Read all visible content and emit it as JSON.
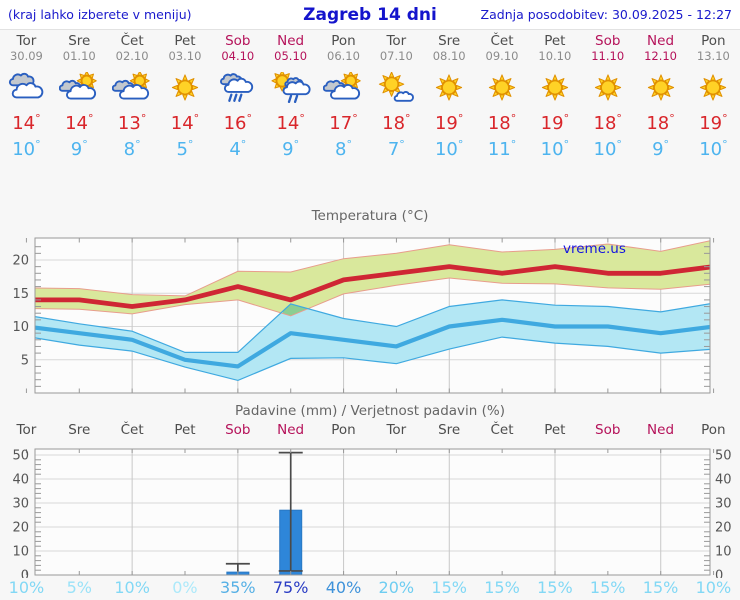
{
  "header": {
    "hint": "(kraj lahko izberete v meniju)",
    "title": "Zagreb 14 dni",
    "updated": "Zadnja posodobitev: 30.09.2025 - 12:27"
  },
  "misc": {
    "degree": "°",
    "percent": "%"
  },
  "colors": {
    "header_blue": "#1414cc",
    "weekday": "#4d4d4d",
    "weekend": "#b5125a",
    "date_gray": "#8b8b8b",
    "high_temp": "#d9262b",
    "low_temp": "#4db4ef",
    "tmax_line": "#cf2634",
    "tmax_band": "#d9e89c",
    "tmax_band_edge": "#e89d8c",
    "tmin_line": "#3fa9e0",
    "tmin_band": "#b3e7f4",
    "band_overlap": "#8bce92",
    "bar_fill": "#2e86d9",
    "bar_edge": "#2a79c4",
    "whisker": "#4a4a4a",
    "watermark_blue": "#1414e0",
    "grid": "#d8d8d8",
    "vgrid": "#c8c8c8",
    "axis": "#999999",
    "tick_label": "#555555",
    "sun_fill": "#ffd226",
    "sun_stroke": "#e09000",
    "cloud_stroke": "#2a5fc0",
    "cloud_gray": "#c3c8ce",
    "cloud_white": "#ffffff"
  },
  "days": [
    {
      "name": "Tor",
      "date": "30.09",
      "weekend": false,
      "icon": "cloudy",
      "high": "14",
      "low": "10"
    },
    {
      "name": "Sre",
      "date": "01.10",
      "weekend": false,
      "icon": "partly-cloudy",
      "high": "14",
      "low": "9"
    },
    {
      "name": "Čet",
      "date": "02.10",
      "weekend": false,
      "icon": "partly-cloudy",
      "high": "13",
      "low": "8"
    },
    {
      "name": "Pet",
      "date": "03.10",
      "weekend": false,
      "icon": "sunny",
      "high": "14",
      "low": "5"
    },
    {
      "name": "Sob",
      "date": "04.10",
      "weekend": true,
      "icon": "rain",
      "high": "16",
      "low": "4"
    },
    {
      "name": "Ned",
      "date": "05.10",
      "weekend": true,
      "icon": "sun-shower",
      "high": "14",
      "low": "9"
    },
    {
      "name": "Pon",
      "date": "06.10",
      "weekend": false,
      "icon": "partly-cloudy",
      "high": "17",
      "low": "8"
    },
    {
      "name": "Tor",
      "date": "07.10",
      "weekend": false,
      "icon": "mostly-sunny",
      "high": "18",
      "low": "7"
    },
    {
      "name": "Sre",
      "date": "08.10",
      "weekend": false,
      "icon": "sunny",
      "high": "19",
      "low": "10"
    },
    {
      "name": "Čet",
      "date": "09.10",
      "weekend": false,
      "icon": "sunny",
      "high": "18",
      "low": "11"
    },
    {
      "name": "Pet",
      "date": "10.10",
      "weekend": false,
      "icon": "sunny",
      "high": "19",
      "low": "10"
    },
    {
      "name": "Sob",
      "date": "11.10",
      "weekend": true,
      "icon": "sunny",
      "high": "18",
      "low": "10"
    },
    {
      "name": "Ned",
      "date": "12.10",
      "weekend": true,
      "icon": "sunny",
      "high": "18",
      "low": "9"
    },
    {
      "name": "Pon",
      "date": "13.10",
      "weekend": false,
      "icon": "sunny",
      "high": "19",
      "low": "10"
    }
  ],
  "chart_data": [
    {
      "type": "line",
      "title": "Temperatura (°C)",
      "watermark": "vreme.us",
      "categories": [
        "Tor",
        "Sre",
        "Čet",
        "Pet",
        "Sob",
        "Ned",
        "Pon",
        "Tor",
        "Sre",
        "Čet",
        "Pet",
        "Sob",
        "Ned",
        "Pon"
      ],
      "ylim": [
        0,
        23.3
      ],
      "yticks": [
        5,
        10,
        15,
        20
      ],
      "grid": true,
      "series": [
        {
          "name": "t_max",
          "values": [
            14,
            14,
            13,
            14,
            16,
            14,
            17,
            18,
            19,
            18,
            19,
            18,
            18,
            19
          ]
        },
        {
          "name": "t_max_range_upper",
          "values": [
            15.8,
            15.7,
            14.8,
            14.6,
            18.3,
            18.2,
            20.2,
            21.0,
            22.3,
            21.2,
            21.6,
            22.4,
            21.3,
            23.0
          ]
        },
        {
          "name": "t_max_range_lower",
          "values": [
            12.7,
            12.6,
            11.9,
            13.3,
            14.0,
            11.6,
            14.9,
            16.2,
            17.3,
            16.5,
            16.4,
            15.8,
            15.6,
            16.4
          ]
        },
        {
          "name": "t_min",
          "values": [
            10,
            9,
            8,
            5,
            4,
            9,
            8,
            7,
            10,
            11,
            10,
            10,
            9,
            10
          ]
        },
        {
          "name": "t_min_range_upper",
          "values": [
            11.7,
            10.4,
            9.3,
            6.1,
            6.1,
            13.4,
            11.2,
            10.0,
            13.0,
            14.0,
            13.2,
            13.0,
            12.2,
            13.5
          ]
        },
        {
          "name": "t_min_range_lower",
          "values": [
            8.5,
            7.2,
            6.3,
            3.9,
            1.9,
            5.2,
            5.3,
            4.4,
            6.6,
            8.4,
            7.5,
            7.0,
            6.0,
            6.6
          ]
        }
      ]
    },
    {
      "type": "bar",
      "title": "Padavine (mm) / Verjetnost padavin (%)",
      "categories": [
        "Tor",
        "Sre",
        "Čet",
        "Pet",
        "Sob",
        "Ned",
        "Pon",
        "Tor",
        "Sre",
        "Čet",
        "Pet",
        "Sob",
        "Ned",
        "Pon"
      ],
      "ylim": [
        0,
        52.5
      ],
      "yticks": [
        0,
        10,
        20,
        30,
        40,
        50
      ],
      "grid": true,
      "values": [
        0,
        0,
        0,
        0,
        1.2,
        27,
        0,
        0,
        0,
        0,
        0,
        0,
        0,
        0
      ],
      "whiskers": [
        null,
        null,
        null,
        null,
        {
          "low": 1.2,
          "high": 4.7,
          "caps": "top"
        },
        {
          "low": 1.7,
          "high": 51,
          "caps": "both"
        },
        null,
        null,
        null,
        null,
        null,
        null,
        null,
        null
      ],
      "probabilities_pct": [
        10,
        5,
        10,
        0,
        35,
        75,
        40,
        20,
        15,
        15,
        15,
        15,
        15,
        10
      ],
      "prob_colors": [
        "#82d8f5",
        "#9ae2f8",
        "#82d8f5",
        "#ace9fa",
        "#56b0e5",
        "#2a3cc4",
        "#3e92da",
        "#6ecdf1",
        "#82d8f5",
        "#82d8f5",
        "#82d8f5",
        "#82d8f5",
        "#82d8f5",
        "#82d8f5"
      ]
    }
  ]
}
